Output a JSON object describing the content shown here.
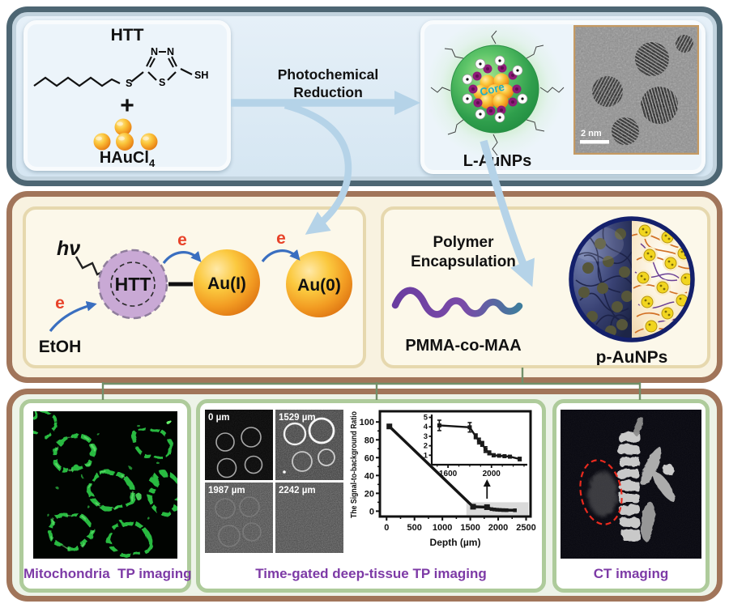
{
  "top_panel": {
    "reactants": {
      "title": "HTT",
      "atoms": {
        "n1": "N",
        "n2": "N",
        "s_ring": "S",
        "s_chain": "S",
        "sh": "SH"
      },
      "plus": "+",
      "gold_formula": "HAuCl",
      "gold_formula_sub": "4"
    },
    "arrow_label_line1": "Photochemical",
    "arrow_label_line2": "Reduction",
    "product": {
      "core_label": "Core",
      "tem_scalebar": "2 nm",
      "name": "L-AuNPs"
    }
  },
  "middle_panel": {
    "mechanism": {
      "hv": "hν",
      "htt": "HTT",
      "e": "e",
      "au1": "Au(I)",
      "au0": "Au(0)",
      "etoh": "EtOH"
    },
    "encapsulation": {
      "label_line1": "Polymer",
      "label_line2": "Encapsulation",
      "polymer_name": "PMMA-co-MAA",
      "product_name": "p-AuNPs"
    }
  },
  "bottom_panel": {
    "mito": {
      "caption": "Mitochondria  TP imaging"
    },
    "deep_tissue": {
      "caption": "Time-gated deep-tissue TP imaging",
      "depth_labels": [
        "0 µm",
        "1529 µm",
        "1987 µm",
        "2242 µm"
      ]
    },
    "ct": {
      "caption": "CT imaging"
    }
  },
  "chart_data": {
    "type": "line",
    "title": "",
    "xlabel": "Depth (µm)",
    "ylabel": "The Signal-to-background Ratio",
    "xlim": [
      -120,
      2580
    ],
    "ylim": [
      -6,
      112
    ],
    "x_ticks": [
      0,
      500,
      1000,
      1500,
      2000,
      2500
    ],
    "y_ticks": [
      0,
      20,
      40,
      60,
      80,
      100
    ],
    "grid": false,
    "points": [
      [
        50,
        95,
        3
      ],
      [
        1550,
        5,
        0
      ],
      [
        1800,
        4.5,
        0
      ],
      [
        1880,
        2.3,
        0
      ],
      [
        1930,
        1.9,
        0
      ],
      [
        1980,
        1.6,
        0
      ],
      [
        2030,
        1.4,
        0
      ],
      [
        2090,
        1.2,
        0
      ],
      [
        2150,
        1.1,
        0
      ],
      [
        2300,
        1.0,
        0
      ]
    ],
    "highlight_x": [
      1430,
      2540
    ],
    "highlight_y": [
      -4.5,
      10
    ],
    "inset": {
      "arrow_x": 1800,
      "xlim": [
        1450,
        2330
      ],
      "ylim": [
        0,
        5.3
      ],
      "x_ticks": [
        1600,
        2000
      ],
      "y_ticks": [
        1,
        2,
        3,
        4,
        5
      ],
      "points": [
        [
          1520,
          4.15,
          0.55
        ],
        [
          1800,
          3.95,
          0.5
        ],
        [
          1855,
          3.0,
          0.25
        ],
        [
          1885,
          2.5,
          0.3
        ],
        [
          1915,
          2.2,
          0.25
        ],
        [
          1945,
          1.6,
          0.3
        ],
        [
          1980,
          1.25,
          0.2
        ],
        [
          2020,
          1.0,
          0.15
        ],
        [
          2070,
          0.95,
          0.1
        ],
        [
          2120,
          0.9,
          0.1
        ],
        [
          2170,
          0.85,
          0.1
        ],
        [
          2260,
          0.6,
          0.18
        ]
      ]
    }
  }
}
